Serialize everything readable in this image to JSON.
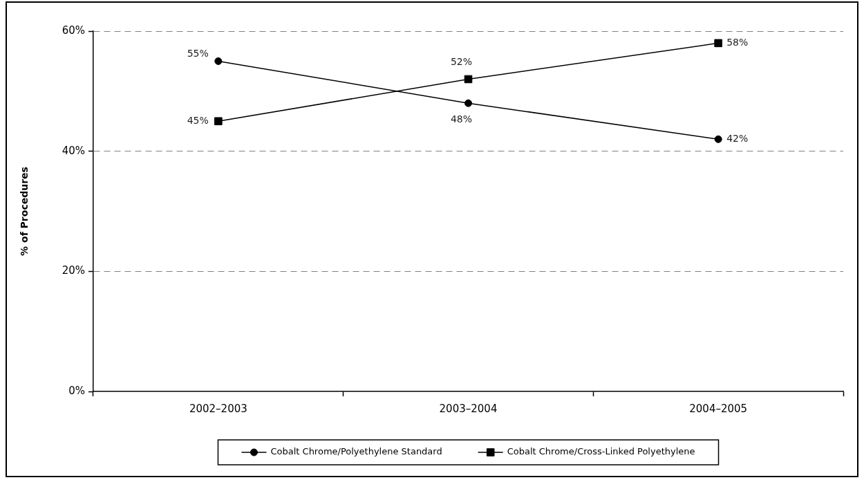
{
  "chart_data": {
    "type": "line",
    "ylabel": "% of Procedures",
    "categories": [
      "2002–2003",
      "2003–2004",
      "2004–2005"
    ],
    "series": [
      {
        "name": "Cobalt Chrome/Polyethylene Standard",
        "color": "#000000",
        "marker": "circle",
        "values": [
          55,
          48,
          42
        ],
        "value_labels": [
          "55%",
          "48%",
          "42%"
        ]
      },
      {
        "name": "Cobalt Chrome/Cross-Linked Polyethylene",
        "color": "#000000",
        "marker": "square",
        "values": [
          45,
          52,
          58
        ],
        "value_labels": [
          "45%",
          "52%",
          "58%"
        ]
      }
    ],
    "ylim": [
      0,
      60
    ],
    "yticks": [
      {
        "value": 0,
        "label": "0%"
      },
      {
        "value": 20,
        "label": "20%"
      },
      {
        "value": 40,
        "label": "40%"
      },
      {
        "value": 60,
        "label": "60%"
      }
    ],
    "grid": "y",
    "legend": "bottom",
    "line_style": "solid"
  }
}
